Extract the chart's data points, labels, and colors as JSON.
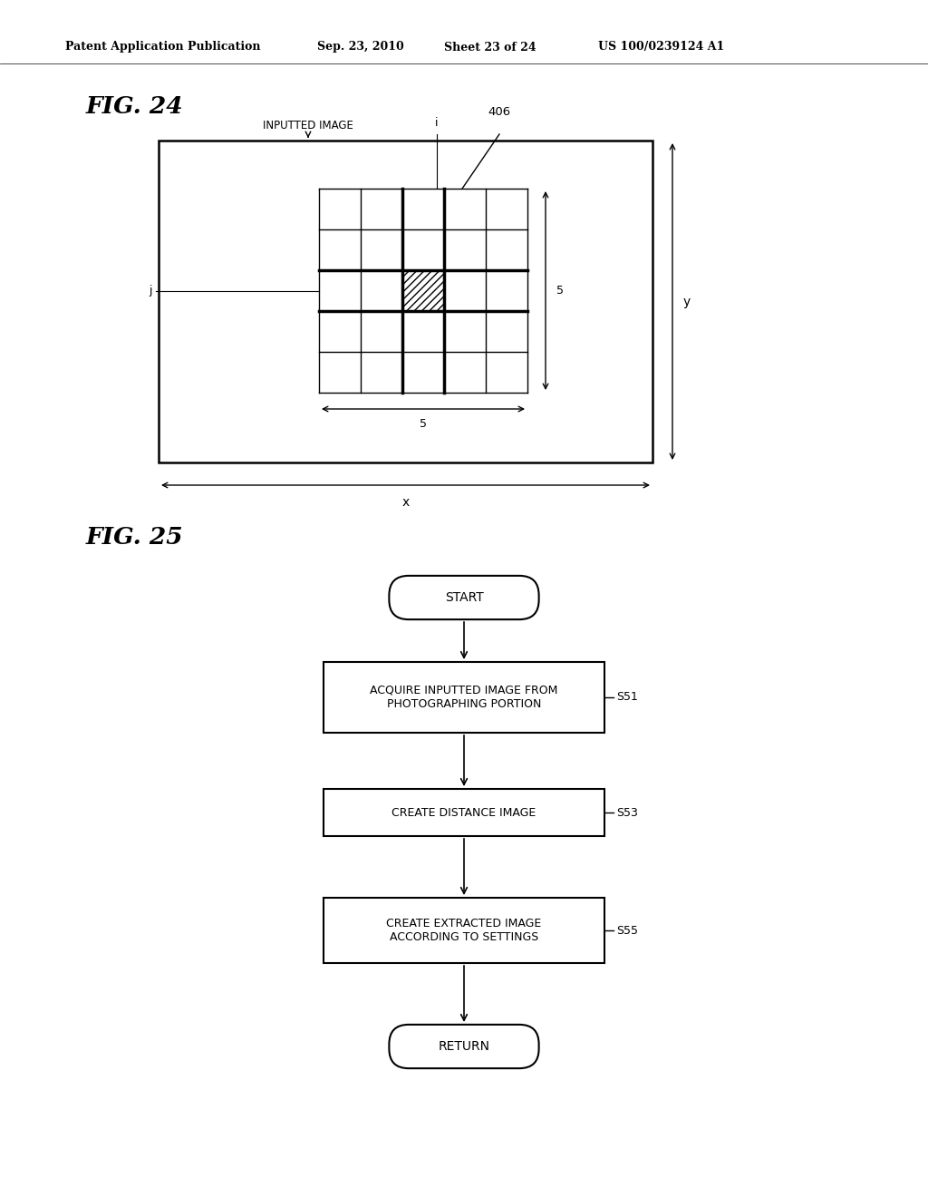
{
  "background_color": "#ffffff",
  "header_text": "Patent Application Publication",
  "header_date": "Sep. 23, 2010",
  "header_sheet": "Sheet 23 of 24",
  "header_patent": "US 100/0239124 A1",
  "fig24_label": "FIG. 24",
  "fig25_label": "FIG. 25",
  "fig24_diagram_label": "INPUTTED IMAGE",
  "fig24_406_label": "406",
  "fig24_i_label": "i",
  "fig24_j_label": "j",
  "fig24_5_horiz_label": "5",
  "fig24_5_vert_label": "5",
  "fig24_x_label": "x",
  "fig24_y_label": "y",
  "start_label": "START",
  "return_label": "RETURN",
  "s51_label": "ACQUIRE INPUTTED IMAGE FROM\nPHOTOGRAPHING PORTION",
  "s51_tag": "S51",
  "s53_label": "CREATE DISTANCE IMAGE",
  "s53_tag": "S53",
  "s55_label": "CREATE EXTRACTED IMAGE\nACCORDING TO SETTINGS",
  "s55_tag": "S55"
}
